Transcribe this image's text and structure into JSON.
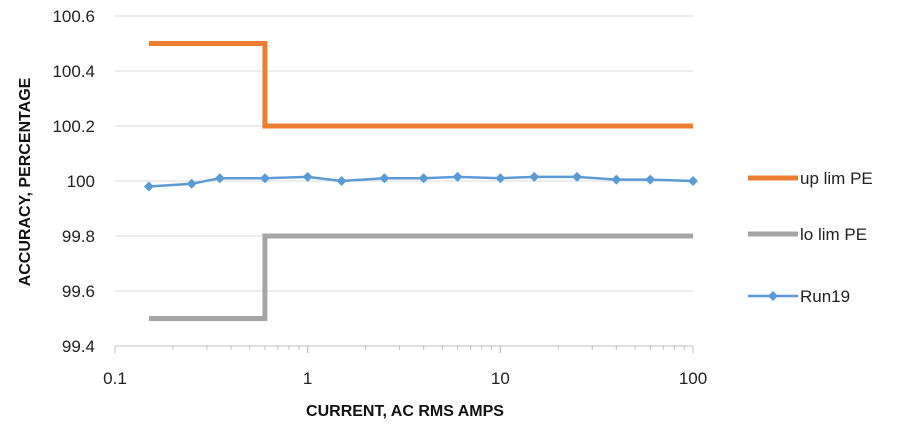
{
  "chart_data": {
    "type": "line",
    "title": "",
    "xlabel": "CURRENT, AC RMS AMPS",
    "ylabel": "ACCURACY, PERCENTAGE",
    "x_scale": "log",
    "xlim": [
      0.1,
      100
    ],
    "ylim": [
      99.4,
      100.6
    ],
    "x_ticks": [
      "0.1",
      "1",
      "10",
      "100"
    ],
    "y_ticks": [
      "99.4",
      "99.6",
      "99.8",
      "100",
      "100.2",
      "100.4",
      "100.6"
    ],
    "grid": "horizontal",
    "legend_position": "right",
    "series": [
      {
        "name": "up lim PE",
        "color": "#ED7D31",
        "marker": "none",
        "x": [
          0.15,
          0.6,
          0.6,
          100
        ],
        "y": [
          100.5,
          100.5,
          100.2,
          100.2
        ]
      },
      {
        "name": "lo lim PE",
        "color": "#A5A5A5",
        "marker": "none",
        "x": [
          0.15,
          0.6,
          0.6,
          100
        ],
        "y": [
          99.5,
          99.5,
          99.8,
          99.8
        ]
      },
      {
        "name": "Run19",
        "color": "#5B9BD5",
        "marker": "diamond",
        "x": [
          0.15,
          0.25,
          0.35,
          0.6,
          1,
          1.5,
          2.5,
          4,
          6,
          10,
          15,
          25,
          40,
          60,
          100
        ],
        "y": [
          99.98,
          99.99,
          100.01,
          100.01,
          100.015,
          100.0,
          100.01,
          100.01,
          100.015,
          100.01,
          100.015,
          100.015,
          100.005,
          100.005,
          100.0
        ]
      }
    ]
  }
}
